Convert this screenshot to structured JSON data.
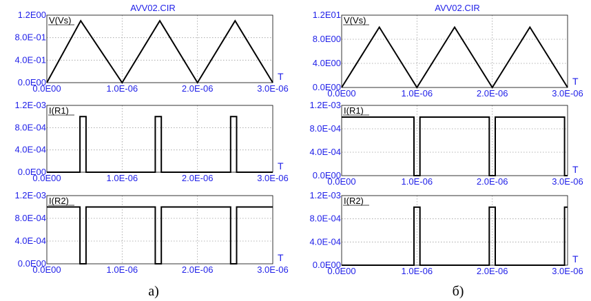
{
  "colors": {
    "axis_text": "#1e1ee8",
    "trace": "#000000",
    "grid": "#9a9a9a",
    "frame": "#000000"
  },
  "panels": [
    {
      "title": "AVV02.CIR",
      "caption": "а)",
      "plots": [
        {
          "label": "V(Vs)",
          "xlabel": "T",
          "yticks": [
            "1.2E00",
            "8.0E-01",
            "4.0E-01",
            "0.0E00"
          ],
          "xticks": [
            "0.0E00",
            "1.0E-06",
            "2.0E-06",
            "3.0E-06"
          ]
        },
        {
          "label": "I(R1)",
          "xlabel": "T",
          "yticks": [
            "1.2E-03",
            "8.0E-04",
            "4.0E-04",
            "0.0E00"
          ],
          "xticks": [
            "0.0E00",
            "1.0E-06",
            "2.0E-06",
            "3.0E-06"
          ]
        },
        {
          "label": "I(R2)",
          "xlabel": "T",
          "yticks": [
            "1.2E-03",
            "8.0E-04",
            "4.0E-04",
            "0.0E00"
          ],
          "xticks": [
            "0.0E00",
            "1.0E-06",
            "2.0E-06",
            "3.0E-06"
          ]
        }
      ]
    },
    {
      "title": "AVV02.CIR",
      "caption": "б)",
      "plots": [
        {
          "label": "V(Vs)",
          "xlabel": "T",
          "yticks": [
            "1.2E01",
            "8.0E00",
            "4.0E00",
            "0.0E00"
          ],
          "xticks": [
            "0.0E00",
            "1.0E-06",
            "2.0E-06",
            "3.0E-06"
          ]
        },
        {
          "label": "I(R1)",
          "xlabel": "T",
          "yticks": [
            "1.2E-03",
            "8.0E-04",
            "4.0E-04",
            "0.0E00"
          ],
          "xticks": [
            "0.0E00",
            "1.0E-06",
            "2.0E-06",
            "3.0E-06"
          ]
        },
        {
          "label": "I(R2)",
          "xlabel": "T",
          "yticks": [
            "1.2E-03",
            "8.0E-04",
            "4.0E-04",
            "0.0E00"
          ],
          "xticks": [
            "0.0E00",
            "1.0E-06",
            "2.0E-06",
            "3.0E-06"
          ]
        }
      ]
    }
  ],
  "chart_data": [
    {
      "type": "line",
      "series": [
        {
          "name": "V(Vs)",
          "x": [
            0,
            4.5e-07,
            1e-06,
            1.5e-06,
            2e-06,
            2.5e-06,
            3e-06
          ],
          "y": [
            0,
            1.1,
            0,
            1.1,
            0,
            1.1,
            0
          ]
        }
      ],
      "xlim": [
        0,
        3e-06
      ],
      "ylim": [
        0,
        1.2
      ],
      "grid": true
    },
    {
      "type": "line",
      "series": [
        {
          "name": "I(R1)",
          "x": [
            0,
            4.4e-07,
            4.4e-07,
            5.2e-07,
            5.2e-07,
            1.44e-06,
            1.44e-06,
            1.52e-06,
            1.52e-06,
            2.44e-06,
            2.44e-06,
            2.52e-06,
            2.52e-06,
            3e-06
          ],
          "y": [
            0,
            0,
            0.001,
            0.001,
            0,
            0,
            0.001,
            0.001,
            0,
            0,
            0.001,
            0.001,
            0,
            0
          ]
        }
      ],
      "xlim": [
        0,
        3e-06
      ],
      "ylim": [
        0,
        0.0012
      ],
      "grid": true
    },
    {
      "type": "line",
      "series": [
        {
          "name": "I(R2)",
          "x": [
            0,
            4.4e-07,
            4.4e-07,
            5.2e-07,
            5.2e-07,
            1.44e-06,
            1.44e-06,
            1.52e-06,
            1.52e-06,
            2.44e-06,
            2.44e-06,
            2.52e-06,
            2.52e-06,
            3e-06
          ],
          "y": [
            0.001,
            0.001,
            0,
            0,
            0.001,
            0.001,
            0,
            0,
            0.001,
            0.001,
            0,
            0,
            0.001,
            0.001
          ]
        }
      ],
      "xlim": [
        0,
        3e-06
      ],
      "ylim": [
        0,
        0.0012
      ],
      "grid": true
    },
    {
      "type": "line",
      "series": [
        {
          "name": "V(Vs)",
          "x": [
            0,
            5e-07,
            1e-06,
            1.5e-06,
            2e-06,
            2.5e-06,
            3e-06
          ],
          "y": [
            0,
            10,
            0,
            10,
            0,
            10,
            0
          ]
        }
      ],
      "xlim": [
        0,
        3e-06
      ],
      "ylim": [
        0,
        12
      ],
      "grid": true
    },
    {
      "type": "line",
      "series": [
        {
          "name": "I(R1)",
          "x": [
            0,
            9.6e-07,
            9.6e-07,
            1.04e-06,
            1.04e-06,
            1.96e-06,
            1.96e-06,
            2.04e-06,
            2.04e-06,
            2.96e-06,
            2.96e-06,
            3e-06
          ],
          "y": [
            0.001,
            0.001,
            0,
            0,
            0.001,
            0.001,
            0,
            0,
            0.001,
            0.001,
            0,
            0
          ]
        }
      ],
      "xlim": [
        0,
        3e-06
      ],
      "ylim": [
        0,
        0.0012
      ],
      "grid": true
    },
    {
      "type": "line",
      "series": [
        {
          "name": "I(R2)",
          "x": [
            0,
            9.6e-07,
            9.6e-07,
            1.04e-06,
            1.04e-06,
            1.96e-06,
            1.96e-06,
            2.04e-06,
            2.04e-06,
            2.96e-06,
            2.96e-06,
            3e-06
          ],
          "y": [
            0,
            0,
            0.001,
            0.001,
            0,
            0,
            0.001,
            0.001,
            0,
            0,
            0.001,
            0.001
          ]
        }
      ],
      "xlim": [
        0,
        3e-06
      ],
      "ylim": [
        0,
        0.0012
      ],
      "grid": true
    }
  ]
}
